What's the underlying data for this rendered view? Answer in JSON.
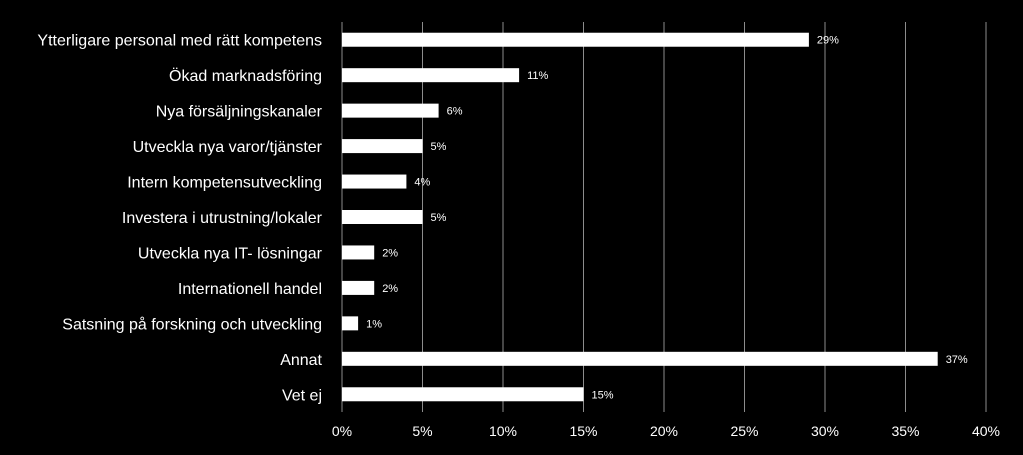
{
  "chart_data": {
    "type": "bar",
    "orientation": "horizontal",
    "categories": [
      "Ytterligare personal med rätt kompetens",
      "Ökad marknadsföring",
      "Nya försäljningskanaler",
      "Utveckla nya varor/tjänster",
      "Intern kompetensutveckling",
      "Investera i utrustning/lokaler",
      "Utveckla nya IT- lösningar",
      "Internationell handel",
      "Satsning på forskning och utveckling",
      "Annat",
      "Vet ej"
    ],
    "values": [
      29,
      11,
      6,
      5,
      4,
      5,
      2,
      2,
      1,
      37,
      15
    ],
    "data_labels": [
      "29%",
      "11%",
      "6%",
      "5%",
      "4%",
      "5%",
      "2%",
      "2%",
      "1%",
      "37%",
      "15%"
    ],
    "xlim": [
      0,
      40
    ],
    "x_ticks": [
      "0%",
      "5%",
      "10%",
      "15%",
      "20%",
      "25%",
      "30%",
      "35%",
      "40%"
    ],
    "x_tick_values": [
      0,
      5,
      10,
      15,
      20,
      25,
      30,
      35,
      40
    ],
    "title": "",
    "xlabel": "",
    "ylabel": "",
    "grid": "vertical",
    "legend": "none",
    "colors": {
      "background": "#000000",
      "bar": "#ffffff",
      "grid": "#8c8c8c",
      "text": "#ffffff"
    }
  }
}
